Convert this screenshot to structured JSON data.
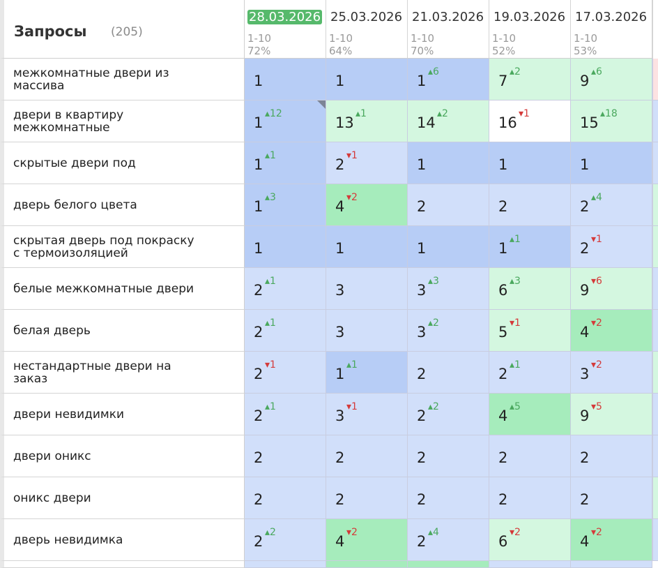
{
  "header": {
    "title": "Запросы",
    "count": "(205)"
  },
  "colors": {
    "blue_dark": "#b7cdf6",
    "blue_light": "#d1dffa",
    "green_dark": "#a6ecbc",
    "green_light": "#d4f7e0",
    "white": "#ffffff",
    "active_date_bg": "#56b96b",
    "up": "#4aa85e",
    "down": "#d43a3a"
  },
  "dates": [
    {
      "date": "28.03.2026",
      "range": "1-10",
      "pct": "72%",
      "active": true
    },
    {
      "date": "25.03.2026",
      "range": "1-10",
      "pct": "64%",
      "active": false
    },
    {
      "date": "21.03.2026",
      "range": "1-10",
      "pct": "70%",
      "active": false
    },
    {
      "date": "19.03.2026",
      "range": "1-10",
      "pct": "52%",
      "active": false
    },
    {
      "date": "17.03.2026",
      "range": "1-10",
      "pct": "53%",
      "active": false
    }
  ],
  "rows": [
    {
      "query": "межкомнатные двери из массива",
      "cells": [
        {
          "v": "1",
          "c": "blue_dark",
          "d": "",
          "dir": ""
        },
        {
          "v": "1",
          "c": "blue_dark",
          "d": "",
          "dir": ""
        },
        {
          "v": "1",
          "c": "blue_dark",
          "d": "6",
          "dir": "up"
        },
        {
          "v": "7",
          "c": "green_light",
          "d": "2",
          "dir": "up"
        },
        {
          "v": "9",
          "c": "green_light",
          "d": "6",
          "dir": "up"
        }
      ]
    },
    {
      "query": "двери в квартиру межкомнатные",
      "cells": [
        {
          "v": "1",
          "c": "blue_dark",
          "d": "12",
          "dir": "up",
          "corner": true
        },
        {
          "v": "13",
          "c": "green_light",
          "d": "1",
          "dir": "up"
        },
        {
          "v": "14",
          "c": "green_light",
          "d": "2",
          "dir": "up"
        },
        {
          "v": "16",
          "c": "white",
          "d": "1",
          "dir": "down"
        },
        {
          "v": "15",
          "c": "green_light",
          "d": "18",
          "dir": "up"
        }
      ]
    },
    {
      "query": "скрытые двери под",
      "cells": [
        {
          "v": "1",
          "c": "blue_dark",
          "d": "1",
          "dir": "up"
        },
        {
          "v": "2",
          "c": "blue_light",
          "d": "1",
          "dir": "down"
        },
        {
          "v": "1",
          "c": "blue_dark",
          "d": "",
          "dir": ""
        },
        {
          "v": "1",
          "c": "blue_dark",
          "d": "",
          "dir": ""
        },
        {
          "v": "1",
          "c": "blue_dark",
          "d": "",
          "dir": ""
        }
      ]
    },
    {
      "query": "дверь белого цвета",
      "cells": [
        {
          "v": "1",
          "c": "blue_dark",
          "d": "3",
          "dir": "up"
        },
        {
          "v": "4",
          "c": "green_dark",
          "d": "2",
          "dir": "down"
        },
        {
          "v": "2",
          "c": "blue_light",
          "d": "",
          "dir": ""
        },
        {
          "v": "2",
          "c": "blue_light",
          "d": "",
          "dir": ""
        },
        {
          "v": "2",
          "c": "blue_light",
          "d": "4",
          "dir": "up"
        }
      ]
    },
    {
      "query": "скрытая дверь под покраску с термоизоляцией",
      "cells": [
        {
          "v": "1",
          "c": "blue_dark",
          "d": "",
          "dir": ""
        },
        {
          "v": "1",
          "c": "blue_dark",
          "d": "",
          "dir": ""
        },
        {
          "v": "1",
          "c": "blue_dark",
          "d": "",
          "dir": ""
        },
        {
          "v": "1",
          "c": "blue_dark",
          "d": "1",
          "dir": "up"
        },
        {
          "v": "2",
          "c": "blue_light",
          "d": "1",
          "dir": "down"
        }
      ]
    },
    {
      "query": "белые межкомнатные двери",
      "cells": [
        {
          "v": "2",
          "c": "blue_light",
          "d": "1",
          "dir": "up"
        },
        {
          "v": "3",
          "c": "blue_light",
          "d": "",
          "dir": ""
        },
        {
          "v": "3",
          "c": "blue_light",
          "d": "3",
          "dir": "up"
        },
        {
          "v": "6",
          "c": "green_light",
          "d": "3",
          "dir": "up"
        },
        {
          "v": "9",
          "c": "green_light",
          "d": "6",
          "dir": "down"
        }
      ]
    },
    {
      "query": "белая дверь",
      "cells": [
        {
          "v": "2",
          "c": "blue_light",
          "d": "1",
          "dir": "up"
        },
        {
          "v": "3",
          "c": "blue_light",
          "d": "",
          "dir": ""
        },
        {
          "v": "3",
          "c": "blue_light",
          "d": "2",
          "dir": "up"
        },
        {
          "v": "5",
          "c": "green_light",
          "d": "1",
          "dir": "down"
        },
        {
          "v": "4",
          "c": "green_dark",
          "d": "2",
          "dir": "down"
        }
      ]
    },
    {
      "query": "нестандартные двери на заказ",
      "cells": [
        {
          "v": "2",
          "c": "blue_light",
          "d": "1",
          "dir": "down"
        },
        {
          "v": "1",
          "c": "blue_dark",
          "d": "1",
          "dir": "up"
        },
        {
          "v": "2",
          "c": "blue_light",
          "d": "",
          "dir": ""
        },
        {
          "v": "2",
          "c": "blue_light",
          "d": "1",
          "dir": "up"
        },
        {
          "v": "3",
          "c": "blue_light",
          "d": "2",
          "dir": "down"
        }
      ]
    },
    {
      "query": "двери невидимки",
      "cells": [
        {
          "v": "2",
          "c": "blue_light",
          "d": "1",
          "dir": "up"
        },
        {
          "v": "3",
          "c": "blue_light",
          "d": "1",
          "dir": "down"
        },
        {
          "v": "2",
          "c": "blue_light",
          "d": "2",
          "dir": "up"
        },
        {
          "v": "4",
          "c": "green_dark",
          "d": "5",
          "dir": "up"
        },
        {
          "v": "9",
          "c": "green_light",
          "d": "5",
          "dir": "down"
        }
      ]
    },
    {
      "query": "двери оникс",
      "cells": [
        {
          "v": "2",
          "c": "blue_light",
          "d": "",
          "dir": ""
        },
        {
          "v": "2",
          "c": "blue_light",
          "d": "",
          "dir": ""
        },
        {
          "v": "2",
          "c": "blue_light",
          "d": "",
          "dir": ""
        },
        {
          "v": "2",
          "c": "blue_light",
          "d": "",
          "dir": ""
        },
        {
          "v": "2",
          "c": "blue_light",
          "d": "",
          "dir": ""
        }
      ]
    },
    {
      "query": "оникс двери",
      "cells": [
        {
          "v": "2",
          "c": "blue_light",
          "d": "",
          "dir": ""
        },
        {
          "v": "2",
          "c": "blue_light",
          "d": "",
          "dir": ""
        },
        {
          "v": "2",
          "c": "blue_light",
          "d": "",
          "dir": ""
        },
        {
          "v": "2",
          "c": "blue_light",
          "d": "",
          "dir": ""
        },
        {
          "v": "2",
          "c": "blue_light",
          "d": "",
          "dir": ""
        }
      ]
    },
    {
      "query": "дверь невидимка",
      "cells": [
        {
          "v": "2",
          "c": "blue_light",
          "d": "2",
          "dir": "up"
        },
        {
          "v": "4",
          "c": "green_dark",
          "d": "2",
          "dir": "down"
        },
        {
          "v": "2",
          "c": "blue_light",
          "d": "4",
          "dir": "up"
        },
        {
          "v": "6",
          "c": "green_light",
          "d": "2",
          "dir": "down"
        },
        {
          "v": "4",
          "c": "green_dark",
          "d": "2",
          "dir": "down"
        }
      ]
    }
  ],
  "partial_row_colors": [
    "blue_light",
    "green_dark",
    "green_dark",
    "blue_light",
    "blue_light"
  ]
}
